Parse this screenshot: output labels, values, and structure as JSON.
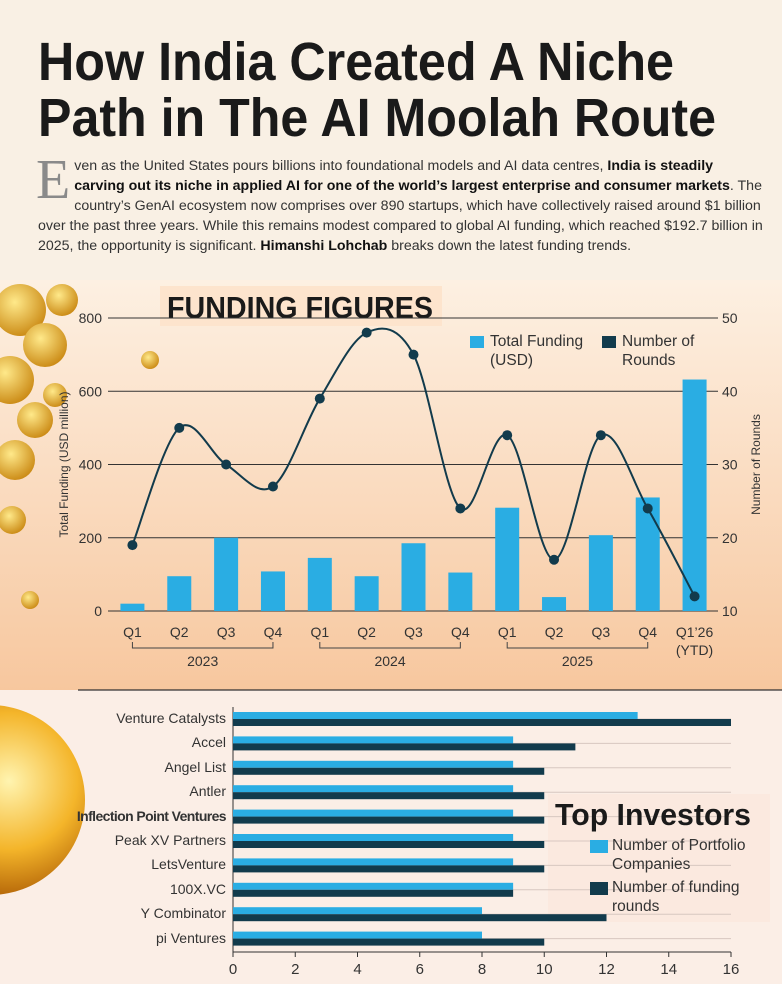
{
  "header": {
    "title_lines": [
      "How India Created A Niche",
      "Path in The AI Moolah Route"
    ]
  },
  "intro": {
    "segments": [
      {
        "text": "E",
        "drop_cap": true
      },
      {
        "text": "ven as the United States pours billions into foundational models and AI data centres, "
      },
      {
        "text": "India is steadily carving out its niche in applied AI for one of the world’s largest enterprise and consumer markets",
        "bold": true
      },
      {
        "text": ". The country’s GenAI ecosystem now comprises over 890 startups, which have collectively raised around $1 billion over the past three years. While this remains modest compared to global AI funding, which reached $192.7 billion in 2025, the opportunity is significant. "
      },
      {
        "text": "Himanshi Lohchab",
        "bold": true
      },
      {
        "text": " breaks down the latest funding trends."
      }
    ]
  },
  "chart_data": [
    {
      "type": "bar_line",
      "title": "FUNDING FIGURES",
      "categories": [
        "Q1",
        "Q2",
        "Q3",
        "Q4",
        "Q1",
        "Q2",
        "Q3",
        "Q4",
        "Q1",
        "Q2",
        "Q3",
        "Q4",
        "Q1’26 (YTD)"
      ],
      "group_labels": [
        "2023",
        "2024",
        "2025"
      ],
      "series": [
        {
          "name": "Total Funding (USD)",
          "color": "#2aade3",
          "values": [
            20,
            95,
            200,
            108,
            145,
            95,
            185,
            105,
            282,
            38,
            207,
            310,
            632
          ]
        },
        {
          "name": "Number of Rounds",
          "color": "#123b4c",
          "axis": "y2",
          "values": [
            19,
            35,
            30,
            27,
            39,
            48,
            45,
            24,
            34,
            17,
            34,
            24,
            12
          ]
        }
      ],
      "ylabel": "Total Funding (USD million)",
      "y2label": "Number of Rounds",
      "ylim": [
        0,
        800
      ],
      "yticks": [
        0,
        200,
        400,
        600,
        800
      ],
      "y2lim": [
        10,
        50
      ],
      "y2ticks": [
        10,
        20,
        30,
        40,
        50
      ],
      "grid": true
    },
    {
      "type": "hbar",
      "title": "Top Investors",
      "categories": [
        "Venture Catalysts",
        "Accel",
        "Angel List",
        "Antler",
        "Inflection Point Ventures",
        "Peak XV Partners",
        "LetsVenture",
        "100X.VC",
        "Y Combinator",
        "pi Ventures"
      ],
      "series": [
        {
          "name": "Number of Portfolio Companies",
          "color": "#2aade3",
          "values": [
            13,
            9,
            9,
            9,
            9,
            9,
            9,
            9,
            8,
            8
          ]
        },
        {
          "name": "Number of funding rounds",
          "color": "#123b4c",
          "values": [
            16,
            11,
            10,
            10,
            10,
            10,
            10,
            9,
            12,
            10
          ]
        }
      ],
      "xlim": [
        0,
        16
      ],
      "xticks": [
        0,
        2,
        4,
        6,
        8,
        10,
        12,
        14,
        16
      ]
    }
  ]
}
